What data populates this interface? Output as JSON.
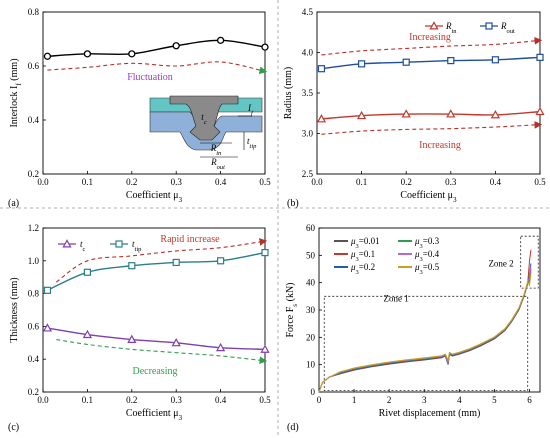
{
  "figure": {
    "divider_color": "#999999"
  },
  "chart_data": [
    {
      "panel": "a",
      "panel_label": "(a)",
      "type": "line",
      "xlabel": "Coefficient μ",
      "xlabel_sub": "3",
      "ylabel": "Interlock I",
      "ylabel_sub": "f",
      "ylabel_unit": " (mm)",
      "xlim": [
        0.0,
        0.5
      ],
      "ylim": [
        0.2,
        0.8
      ],
      "xticks": [
        "0.0",
        "0.1",
        "0.2",
        "0.3",
        "0.4",
        "0.5"
      ],
      "yticks": [
        "0.2",
        "0.4",
        "0.6",
        "0.8"
      ],
      "x": [
        0.01,
        0.1,
        0.2,
        0.3,
        0.4,
        0.5
      ],
      "series": [
        {
          "values": [
            0.636,
            0.645,
            0.645,
            0.675,
            0.695,
            0.67
          ],
          "color": "#000000",
          "marker": "circle"
        }
      ],
      "trend": {
        "x": [
          0.01,
          0.1,
          0.2,
          0.3,
          0.4,
          0.5
        ],
        "values": [
          0.585,
          0.595,
          0.61,
          0.6,
          0.615,
          0.58
        ],
        "color": "#b8302a",
        "end_color": "#2f9e4a"
      },
      "annotation": {
        "text": "Fluctuation",
        "color": "#9b3bc4"
      },
      "inset": {
        "labels": [
          "I",
          "t",
          "R",
          "R",
          "t"
        ],
        "subs": [
          "f",
          "c",
          "in",
          "out",
          "tip"
        ]
      }
    },
    {
      "panel": "b",
      "panel_label": "(b)",
      "type": "line",
      "xlabel": "Coefficient μ",
      "xlabel_sub": "3",
      "ylabel": "Radius",
      "ylabel_sub": "",
      "ylabel_unit": " (mm)",
      "xlim": [
        0.0,
        0.5
      ],
      "ylim": [
        2.5,
        4.5
      ],
      "xticks": [
        "0.0",
        "0.1",
        "0.2",
        "0.3",
        "0.4",
        "0.5"
      ],
      "yticks": [
        "2.5",
        "3.0",
        "3.5",
        "4.0",
        "4.5"
      ],
      "x": [
        0.01,
        0.1,
        0.2,
        0.3,
        0.4,
        0.5
      ],
      "series": [
        {
          "name": "R",
          "name_sub": "in",
          "values": [
            3.18,
            3.22,
            3.24,
            3.24,
            3.23,
            3.27
          ],
          "color": "#c0392b",
          "marker": "triangle"
        },
        {
          "name": "R",
          "name_sub": "out",
          "values": [
            3.8,
            3.86,
            3.88,
            3.9,
            3.91,
            3.94
          ],
          "color": "#1f4e9b",
          "marker": "square"
        }
      ],
      "trends": [
        {
          "x": [
            0.01,
            0.1,
            0.2,
            0.3,
            0.4,
            0.5
          ],
          "values": [
            3.97,
            4.02,
            4.05,
            4.08,
            4.1,
            4.15
          ],
          "color": "#b8302a"
        },
        {
          "x": [
            0.01,
            0.1,
            0.2,
            0.3,
            0.4,
            0.5
          ],
          "values": [
            2.99,
            3.03,
            3.05,
            3.06,
            3.08,
            3.11
          ],
          "color": "#b8302a"
        }
      ],
      "annotations": [
        {
          "text": "Increasing",
          "color": "#c0392b"
        },
        {
          "text": "Increasing",
          "color": "#c0392b"
        }
      ]
    },
    {
      "panel": "c",
      "panel_label": "(c)",
      "type": "line",
      "xlabel": "Coefficient μ",
      "xlabel_sub": "3",
      "ylabel": "Thickness",
      "ylabel_sub": "",
      "ylabel_unit": " (mm)",
      "xlim": [
        0.0,
        0.5
      ],
      "ylim": [
        0.2,
        1.2
      ],
      "xticks": [
        "0.0",
        "0.1",
        "0.2",
        "0.3",
        "0.4",
        "0.5"
      ],
      "yticks": [
        "0.2",
        "0.4",
        "0.6",
        "0.8",
        "1.0",
        "1.2"
      ],
      "x": [
        0.01,
        0.1,
        0.2,
        0.3,
        0.4,
        0.5
      ],
      "series": [
        {
          "name": "t",
          "name_sub": "c",
          "values": [
            0.59,
            0.55,
            0.52,
            0.5,
            0.47,
            0.46
          ],
          "color": "#7e3fb0",
          "marker": "triangle"
        },
        {
          "name": "t",
          "name_sub": "tip",
          "values": [
            0.82,
            0.93,
            0.97,
            0.99,
            1.0,
            1.05
          ],
          "color": "#2a7f8a",
          "marker": "square"
        }
      ],
      "trends": [
        {
          "x": [
            0.03,
            0.1,
            0.2,
            0.3,
            0.4,
            0.5
          ],
          "values": [
            0.87,
            1.0,
            1.03,
            1.06,
            1.08,
            1.12
          ],
          "color": "#b8302a"
        },
        {
          "x": [
            0.03,
            0.1,
            0.2,
            0.3,
            0.4,
            0.5
          ],
          "values": [
            0.52,
            0.49,
            0.46,
            0.44,
            0.42,
            0.39
          ],
          "color": "#2f9e4a"
        }
      ],
      "annotations": [
        {
          "text": "Rapid increase",
          "color": "#c0392b"
        },
        {
          "text": "Decreasing",
          "color": "#2f9e4a"
        }
      ]
    },
    {
      "panel": "d",
      "panel_label": "(d)",
      "type": "line",
      "xlabel": "Rivet displacement (mm)",
      "ylabel": "Force F",
      "ylabel_sub": "s",
      "ylabel_unit": " (kN)",
      "xlim": [
        0,
        6.3
      ],
      "ylim": [
        0,
        60
      ],
      "xticks": [
        "0",
        "1",
        "2",
        "3",
        "4",
        "5",
        "6"
      ],
      "yticks": [
        "0",
        "10",
        "20",
        "30",
        "40",
        "50",
        "60"
      ],
      "series": [
        {
          "name": "μ",
          "name_sub": "3",
          "name_value": "=0.01",
          "color": "#555555",
          "final": 45
        },
        {
          "name": "μ",
          "name_sub": "3",
          "name_value": "=0.1",
          "color": "#c0392b",
          "final": 52
        },
        {
          "name": "μ",
          "name_sub": "3",
          "name_value": "=0.2",
          "color": "#1f5fb0",
          "final": 47
        },
        {
          "name": "μ",
          "name_sub": "3",
          "name_value": "=0.3",
          "color": "#2f9e4a",
          "final": 44
        },
        {
          "name": "μ",
          "name_sub": "3",
          "name_value": "=0.4",
          "color": "#b06ad0",
          "final": 46
        },
        {
          "name": "μ",
          "name_sub": "3",
          "name_value": "=0.5",
          "color": "#c9a21a",
          "final": 43
        }
      ],
      "curve_shape": {
        "x": [
          0,
          0.1,
          0.3,
          0.6,
          1.0,
          1.5,
          2.0,
          2.5,
          3.0,
          3.5,
          3.8,
          4.0,
          4.3,
          4.6,
          5.0,
          5.3,
          5.5,
          5.7,
          5.85,
          5.95
        ],
        "y": [
          0,
          3.5,
          5.5,
          7.0,
          8.4,
          9.6,
          10.6,
          11.4,
          12.1,
          12.9,
          13.5,
          14.2,
          15.5,
          17.2,
          19.8,
          22.8,
          26.2,
          30.5,
          35.5,
          40.0
        ]
      },
      "zones": [
        {
          "label": "Zone 1",
          "x": [
            0.15,
            5.95
          ],
          "y": [
            0.5,
            35
          ]
        },
        {
          "label": "Zone 2",
          "x": [
            5.75,
            6.25
          ],
          "y": [
            38,
            57
          ]
        }
      ]
    }
  ]
}
